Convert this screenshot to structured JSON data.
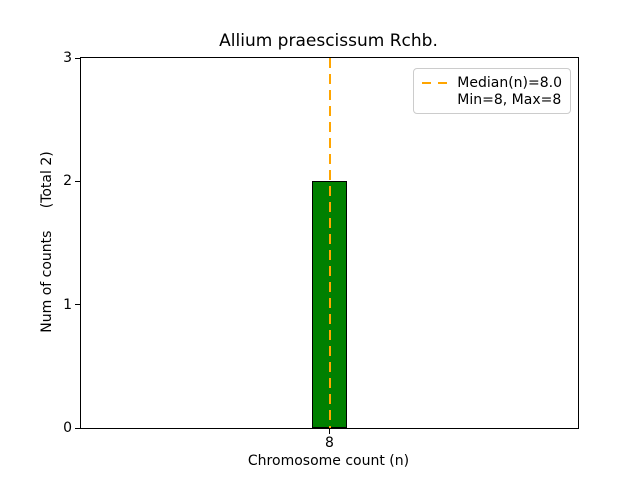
{
  "chart_data": {
    "type": "bar",
    "title": "Allium praescissum Rchb.",
    "xlabel": "Chromosome count (n)",
    "ylabel": "Num of counts     (Total 2)",
    "categories": [
      8
    ],
    "values": [
      2
    ],
    "total_counts": 2,
    "xlim": [
      5.5,
      10.5
    ],
    "ylim": [
      0,
      3
    ],
    "y_ticks": [
      0,
      1,
      2,
      3
    ],
    "x_ticks": [
      8
    ],
    "bar_width_units": 0.35,
    "bar_color": "#008000",
    "bar_edge_color": "#000000",
    "grid": false,
    "median_line": {
      "x": 8,
      "value": 8.0,
      "color": "#FFA500",
      "style": "dashed"
    },
    "stats": {
      "median": 8.0,
      "min": 8,
      "max": 8
    },
    "legend": {
      "position": "upper right",
      "entries": [
        {
          "label": "Median(n)=8.0",
          "handle": "dashed-line",
          "color": "#FFA500"
        },
        {
          "label": "Min=8, Max=8",
          "handle": "none",
          "color": ""
        }
      ]
    }
  }
}
